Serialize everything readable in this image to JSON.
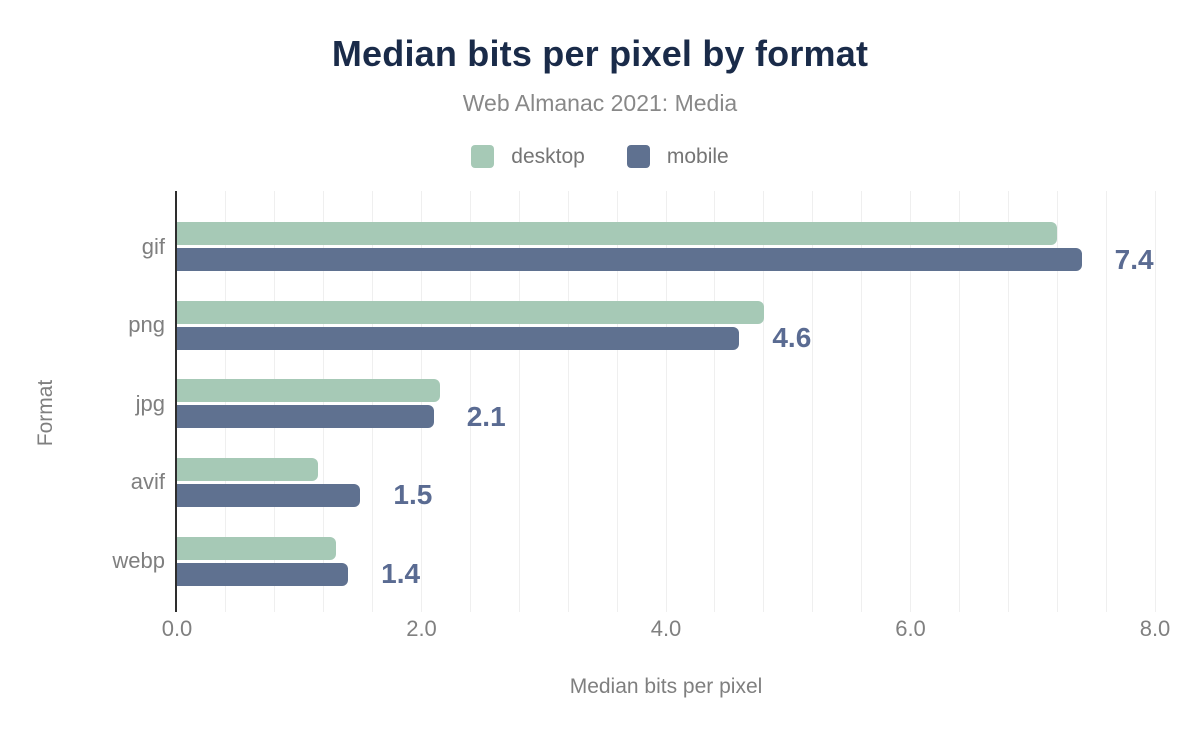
{
  "chart_data": {
    "type": "bar",
    "orientation": "horizontal",
    "title": "Median bits per pixel by format",
    "subtitle": "Web Almanac 2021: Media",
    "categories": [
      "gif",
      "png",
      "jpg",
      "avif",
      "webp"
    ],
    "series": [
      {
        "name": "desktop",
        "values": [
          7.2,
          4.8,
          2.15,
          1.15,
          1.3
        ]
      },
      {
        "name": "mobile",
        "values": [
          7.4,
          4.6,
          2.1,
          1.5,
          1.4
        ]
      }
    ],
    "value_labels": [
      "7.4",
      "4.6",
      "2.1",
      "1.5",
      "1.4"
    ],
    "value_labels_for_series": "mobile",
    "xlabel": "Median bits per pixel",
    "ylabel": "Format",
    "xlim": [
      0,
      8
    ],
    "xticks": [
      {
        "value": 0,
        "label": "0.0"
      },
      {
        "value": 2,
        "label": "2.0"
      },
      {
        "value": 4,
        "label": "4.0"
      },
      {
        "value": 6,
        "label": "6.0"
      },
      {
        "value": 8,
        "label": "8.0"
      }
    ],
    "grid": {
      "on": true,
      "minor_step": 0.4
    },
    "legend": {
      "position": "top",
      "entries": [
        "desktop",
        "mobile"
      ]
    },
    "colors": {
      "desktop": "#a6c9b6",
      "mobile": "#5f7190",
      "value_label": "#5a6b92",
      "title": "#1a2b49",
      "subtitle": "#888888",
      "legend_text": "#757575",
      "axis_text": "#7f7f7f",
      "tick_text": "#808080",
      "grid": "#efefef",
      "axis_line": "#2e2e2e"
    }
  }
}
